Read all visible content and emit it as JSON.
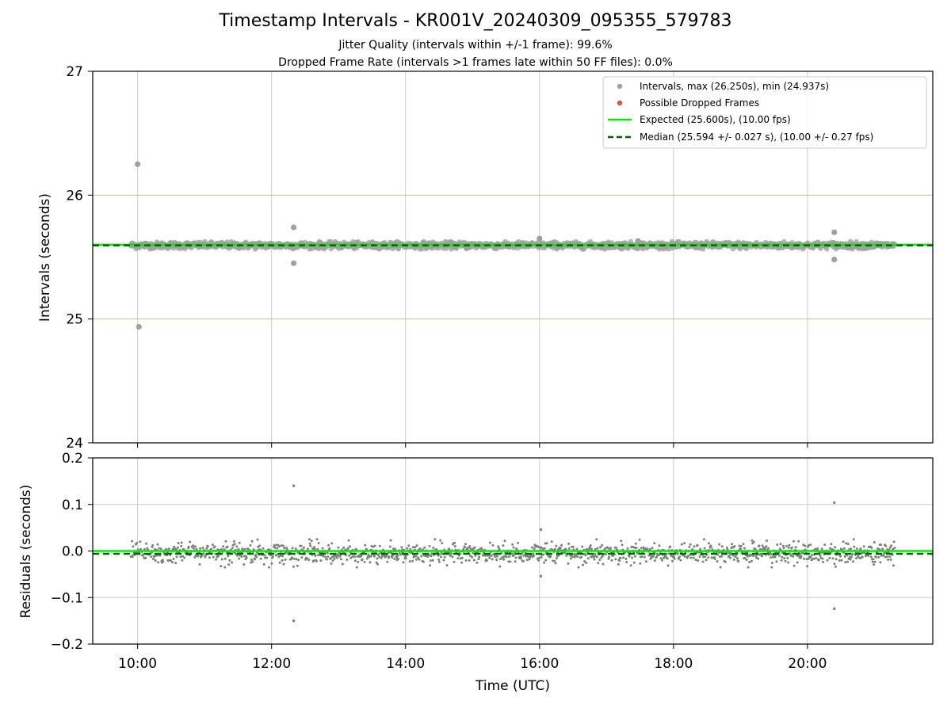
{
  "title": "Timestamp Intervals - KR001V_20240309_095355_579783",
  "subtitle_line1": "Jitter Quality (intervals within +/-1 frame): 99.6%",
  "subtitle_line2": "Dropped Frame Rate (intervals >1 frames late within 50 FF files): 0.0%",
  "colors": {
    "interval_points": "#808080",
    "dropped_points": "#e05050",
    "expected_line": "#00ee00",
    "median_line": "#006400",
    "hgrid_top": "#c8c08a",
    "grid": "#cccccc"
  },
  "chart_data": [
    {
      "type": "scatter",
      "panel": "intervals",
      "ylabel": "Intervals (seconds)",
      "ylim": [
        24,
        27
      ],
      "yticks": [
        24,
        25,
        26,
        27
      ],
      "ytick_labels": [
        "24",
        "25",
        "26",
        "27"
      ],
      "xlim_hours": [
        9.33,
        21.87
      ],
      "grid": "on",
      "legend_placement": "top-right",
      "legend": [
        {
          "label": "Intervals, max (26.250s), min (24.937s)",
          "marker": "circle",
          "color": "#a0a0a0"
        },
        {
          "label": "Possible Dropped Frames",
          "marker": "circle",
          "color": "#e05050"
        },
        {
          "label": "Expected (25.600s), (10.00 fps)",
          "marker": "line",
          "color": "#00ee00"
        },
        {
          "label": "Median (25.594 +/- 0.027 s), (10.00 +/- 0.27 fps)",
          "marker": "dashed",
          "color": "#006400"
        }
      ],
      "expected": 25.6,
      "median": 25.594,
      "band_start_hours": 9.9,
      "band_end_hours": 21.3,
      "band_center": 25.595,
      "band_halfwidth": 0.03,
      "outliers": [
        {
          "x": 10.0,
          "y": 26.25
        },
        {
          "x": 10.02,
          "y": 24.937
        },
        {
          "x": 12.33,
          "y": 25.74
        },
        {
          "x": 12.33,
          "y": 25.45
        },
        {
          "x": 16.0,
          "y": 25.65
        },
        {
          "x": 17.47,
          "y": 25.63
        },
        {
          "x": 20.4,
          "y": 25.7
        },
        {
          "x": 20.4,
          "y": 25.48
        }
      ],
      "dropped_frames": []
    },
    {
      "type": "scatter",
      "panel": "residuals",
      "ylabel": "Residuals (seconds)",
      "xlabel": "Time (UTC)",
      "ylim": [
        -0.2,
        0.2
      ],
      "yticks": [
        -0.2,
        -0.1,
        0.0,
        0.1,
        0.2
      ],
      "ytick_labels": [
        "−0.2",
        "−0.1",
        "0.0",
        "0.1",
        "0.2"
      ],
      "xticks_hours": [
        10,
        12,
        14,
        16,
        18,
        20
      ],
      "xtick_labels": [
        "10:00",
        "12:00",
        "14:00",
        "16:00",
        "18:00",
        "20:00"
      ],
      "xlim_hours": [
        9.33,
        21.87
      ],
      "grid": "on",
      "expected_residual": 0.0,
      "median_residual": -0.006,
      "band_start_hours": 9.9,
      "band_end_hours": 21.3,
      "band_halfwidth": 0.03,
      "outliers": [
        {
          "x": 12.33,
          "y": 0.14
        },
        {
          "x": 12.33,
          "y": -0.15
        },
        {
          "x": 16.02,
          "y": 0.046
        },
        {
          "x": 16.02,
          "y": -0.054
        },
        {
          "x": 20.4,
          "y": 0.104
        },
        {
          "x": 20.4,
          "y": -0.124
        }
      ]
    }
  ]
}
